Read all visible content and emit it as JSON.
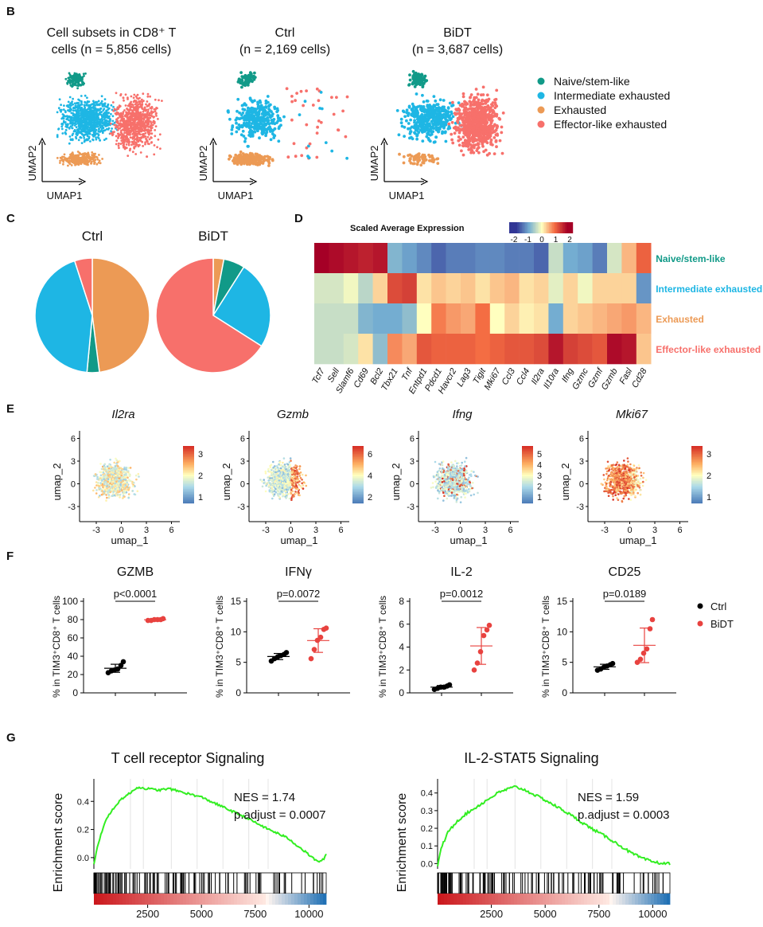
{
  "panels": {
    "B": {
      "letter": "B",
      "umaps": [
        {
          "title_l1": "Cell subsets in CD8⁺ T",
          "title_l2": "cells (n = 5,856 cells)",
          "mode": "all"
        },
        {
          "title_l1": "Ctrl",
          "title_l2": "(n = 2,169 cells)",
          "mode": "ctrl"
        },
        {
          "title_l1": "BiDT",
          "title_l2": "(n = 3,687 cells)",
          "mode": "bidt"
        }
      ],
      "xaxis": "UMAP1",
      "yaxis": "UMAP2",
      "legend": [
        {
          "label": "Naive/stem-like",
          "color": "#119a88"
        },
        {
          "label": "Intermediate exhausted",
          "color": "#1eb6e4"
        },
        {
          "label": "Exhausted",
          "color": "#ec9a55"
        },
        {
          "label": "Effector-like exhausted",
          "color": "#f7706b"
        }
      ]
    },
    "C": {
      "letter": "C",
      "pies": [
        {
          "title": "Ctrl",
          "slices": [
            {
              "name": "Exhausted",
              "value": 48,
              "color": "#ec9a55"
            },
            {
              "name": "Naive/stem-like",
              "value": 3.5,
              "color": "#119a88"
            },
            {
              "name": "Intermediate exhausted",
              "value": 43.5,
              "color": "#1eb6e4"
            },
            {
              "name": "Effector-like exhausted",
              "value": 5,
              "color": "#f7706b"
            }
          ]
        },
        {
          "title": "BiDT",
          "slices": [
            {
              "name": "Exhausted",
              "value": 3,
              "color": "#ec9a55"
            },
            {
              "name": "Naive/stem-like",
              "value": 6,
              "color": "#119a88"
            },
            {
              "name": "Intermediate exhausted",
              "value": 25,
              "color": "#1eb6e4"
            },
            {
              "name": "Effector-like exhausted",
              "value": 66,
              "color": "#f7706b"
            }
          ]
        }
      ]
    },
    "D": {
      "letter": "D",
      "title": "Scaled Average Expression",
      "scale_ticks": [
        "-2",
        "-1",
        "0",
        "1",
        "2"
      ],
      "genes": [
        "Tcf7",
        "Sell",
        "Slamf6",
        "Cd69",
        "Bcl2",
        "Tbx21",
        "Tnf",
        "Entpd1",
        "Pdcd1",
        "Havcr2",
        "Lag3",
        "Tigit",
        "Mki67",
        "Ccl3",
        "Ccl4",
        "Il2ra",
        "Il10ra",
        "Ifng",
        "Gzmc",
        "Gzmf",
        "Gzmb",
        "Fasl",
        "Cd28"
      ],
      "rows": [
        {
          "label": "Naive/stem-like",
          "color": "#119a88",
          "values": [
            2.0,
            1.9,
            1.8,
            1.7,
            1.8,
            -0.9,
            -1.1,
            -1.3,
            -1.6,
            -1.4,
            -1.4,
            -1.3,
            -1.3,
            -1.4,
            -1.4,
            -1.6,
            -0.4,
            -1.0,
            -1.1,
            -1.4,
            -0.3,
            0.5,
            1.1
          ]
        },
        {
          "label": "Intermediate exhausted",
          "color": "#1eb6e4",
          "values": [
            -0.3,
            -0.3,
            -0.1,
            -0.5,
            0.3,
            1.3,
            1.4,
            0.2,
            0.4,
            0.3,
            0.4,
            0.2,
            0.4,
            0.5,
            0.2,
            0.3,
            -0.2,
            0.3,
            -0.1,
            0.3,
            0.3,
            0.3,
            -1.2
          ]
        },
        {
          "label": "Exhausted",
          "color": "#ec9a55",
          "values": [
            -0.4,
            -0.4,
            -0.4,
            -0.9,
            -1.0,
            -1.0,
            -0.8,
            0.0,
            0.9,
            0.7,
            0.6,
            1.0,
            0.0,
            0.3,
            0.1,
            0.2,
            -1.0,
            0.3,
            0.4,
            0.5,
            0.6,
            0.7,
            0.5
          ]
        },
        {
          "label": "Effector-like exhausted",
          "color": "#f7706b",
          "values": [
            -0.4,
            -0.4,
            -0.3,
            0.2,
            -0.8,
            0.8,
            0.6,
            1.2,
            1.1,
            1.1,
            1.1,
            1.0,
            1.1,
            1.2,
            1.2,
            1.3,
            1.8,
            1.4,
            1.3,
            1.2,
            1.9,
            1.8,
            0.4
          ]
        }
      ]
    },
    "E": {
      "letter": "E",
      "xaxis": "umap_1",
      "yaxis": "umap_2",
      "x_ticks": [
        "-3",
        "0",
        "3",
        "6"
      ],
      "y_ticks": [
        "6",
        "3",
        "0",
        "-3"
      ],
      "features": [
        {
          "gene": "Il2ra",
          "scale": [
            "3",
            "2",
            "1"
          ],
          "mode": "uniform"
        },
        {
          "gene": "Gzmb",
          "scale": [
            "6",
            "4",
            "2"
          ],
          "mode": "right"
        },
        {
          "gene": "Ifng",
          "scale": [
            "5",
            "4",
            "3",
            "2",
            "1"
          ],
          "mode": "sparse"
        },
        {
          "gene": "Mki67",
          "scale": [
            "3",
            "2",
            "1"
          ],
          "mode": "high"
        }
      ]
    },
    "F": {
      "letter": "F",
      "ylabel": "% in TIM3⁺CD8⁺ T cells",
      "legend": [
        {
          "label": "Ctrl",
          "color": "#000000"
        },
        {
          "label": "BiDT",
          "color": "#e8423f"
        }
      ],
      "plots": [
        {
          "title": "GZMB",
          "pvalue": "p<0.0001",
          "ymax": 100,
          "ticks": [
            "0",
            "20",
            "40",
            "60",
            "80",
            "100"
          ],
          "ctrl": [
            22,
            24,
            25,
            26,
            30,
            34
          ],
          "bidt": [
            79,
            79,
            80,
            80,
            80,
            81
          ]
        },
        {
          "title": "IFNγ",
          "pvalue": "p=0.0072",
          "ymax": 15,
          "ticks": [
            "0",
            "5",
            "10",
            "15"
          ],
          "ctrl": [
            5.2,
            5.6,
            5.9,
            6.1,
            6.3,
            6.6
          ],
          "bidt": [
            5.6,
            7.1,
            8.6,
            9.1,
            10.4,
            10.6
          ]
        },
        {
          "title": "IL-2",
          "pvalue": "p=0.0012",
          "ymax": 8,
          "ticks": [
            "0",
            "2",
            "4",
            "6",
            "8"
          ],
          "ctrl": [
            0.3,
            0.4,
            0.5,
            0.5,
            0.6,
            0.7
          ],
          "bidt": [
            2.0,
            2.6,
            3.6,
            5.0,
            5.5,
            5.9
          ]
        },
        {
          "title": "CD25",
          "pvalue": "p=0.0189",
          "ymax": 15,
          "ticks": [
            "0",
            "5",
            "10",
            "15"
          ],
          "ctrl": [
            3.7,
            3.9,
            4.2,
            4.4,
            4.6,
            4.8
          ],
          "bidt": [
            5.0,
            5.5,
            6.5,
            7.2,
            10.5,
            12.0
          ]
        }
      ]
    },
    "G": {
      "letter": "G",
      "ylabel": "Enrichment score",
      "plots": [
        {
          "title": "T cell receptor Signaling",
          "nes": "NES = 1.74",
          "padj": "p.adjust = 0.0007",
          "y_ticks": [
            "0.0",
            "0.2",
            "0.4"
          ],
          "ymin": -0.08,
          "ymax": 0.56,
          "x_ticks": [
            "2500",
            "5000",
            "7500",
            "10000"
          ]
        },
        {
          "title": "IL-2-STAT5 Signaling",
          "nes": "NES = 1.59",
          "padj": "p.adjust = 0.0003",
          "y_ticks": [
            "0.0",
            "0.1",
            "0.2",
            "0.3",
            "0.4"
          ],
          "ymin": -0.03,
          "ymax": 0.48,
          "x_ticks": [
            "2500",
            "5000",
            "7500",
            "10000"
          ]
        }
      ]
    }
  },
  "chart_data": [
    {
      "type": "pie",
      "title": "Ctrl",
      "categories": [
        "Exhausted",
        "Naive/stem-like",
        "Intermediate exhausted",
        "Effector-like exhausted"
      ],
      "values": [
        48,
        3.5,
        43.5,
        5
      ]
    },
    {
      "type": "pie",
      "title": "BiDT",
      "categories": [
        "Exhausted",
        "Naive/stem-like",
        "Intermediate exhausted",
        "Effector-like exhausted"
      ],
      "values": [
        3,
        6,
        25,
        66
      ]
    },
    {
      "type": "scatter",
      "title": "GZMB",
      "ylabel": "% in TIM3⁺CD8⁺ T cells",
      "ylim": [
        0,
        100
      ],
      "series": [
        {
          "name": "Ctrl",
          "values": [
            22,
            24,
            25,
            26,
            30,
            34
          ]
        },
        {
          "name": "BiDT",
          "values": [
            79,
            79,
            80,
            80,
            80,
            81
          ]
        }
      ]
    },
    {
      "type": "scatter",
      "title": "IFNγ",
      "ylim": [
        0,
        15
      ],
      "series": [
        {
          "name": "Ctrl",
          "values": [
            5.2,
            5.6,
            5.9,
            6.1,
            6.3,
            6.6
          ]
        },
        {
          "name": "BiDT",
          "values": [
            5.6,
            7.1,
            8.6,
            9.1,
            10.4,
            10.6
          ]
        }
      ]
    },
    {
      "type": "scatter",
      "title": "IL-2",
      "ylim": [
        0,
        8
      ],
      "series": [
        {
          "name": "Ctrl",
          "values": [
            0.3,
            0.4,
            0.5,
            0.5,
            0.6,
            0.7
          ]
        },
        {
          "name": "BiDT",
          "values": [
            2.0,
            2.6,
            3.6,
            5.0,
            5.5,
            5.9
          ]
        }
      ]
    },
    {
      "type": "scatter",
      "title": "CD25",
      "ylim": [
        0,
        15
      ],
      "series": [
        {
          "name": "Ctrl",
          "values": [
            3.7,
            3.9,
            4.2,
            4.4,
            4.6,
            4.8
          ]
        },
        {
          "name": "BiDT",
          "values": [
            5.0,
            5.5,
            6.5,
            7.2,
            10.5,
            12.0
          ]
        }
      ]
    },
    {
      "type": "line",
      "title": "T cell receptor Signaling",
      "ylabel": "Enrichment score",
      "xlim": [
        0,
        10800
      ],
      "x": [
        0,
        200,
        500,
        900,
        1300,
        1700,
        2000,
        2500,
        3000,
        3500,
        4000,
        5000,
        6000,
        7000,
        8000,
        9000,
        9500,
        10000,
        10400,
        10700,
        10800
      ],
      "y": [
        -0.05,
        0.1,
        0.25,
        0.35,
        0.42,
        0.46,
        0.5,
        0.49,
        0.48,
        0.49,
        0.47,
        0.43,
        0.36,
        0.29,
        0.21,
        0.14,
        0.08,
        0.02,
        -0.03,
        -0.01,
        0.02
      ]
    },
    {
      "type": "line",
      "title": "IL-2-STAT5 Signaling",
      "ylabel": "Enrichment score",
      "xlim": [
        0,
        10800
      ],
      "x": [
        0,
        200,
        500,
        900,
        1300,
        1800,
        2300,
        2800,
        3200,
        3600,
        4000,
        4500,
        5000,
        6000,
        7000,
        8000,
        9000,
        9500,
        10000,
        10500,
        10800
      ],
      "y": [
        -0.01,
        0.1,
        0.18,
        0.24,
        0.28,
        0.32,
        0.36,
        0.4,
        0.42,
        0.435,
        0.42,
        0.39,
        0.36,
        0.29,
        0.21,
        0.14,
        0.06,
        0.03,
        0.01,
        0.0,
        0.0
      ]
    }
  ]
}
